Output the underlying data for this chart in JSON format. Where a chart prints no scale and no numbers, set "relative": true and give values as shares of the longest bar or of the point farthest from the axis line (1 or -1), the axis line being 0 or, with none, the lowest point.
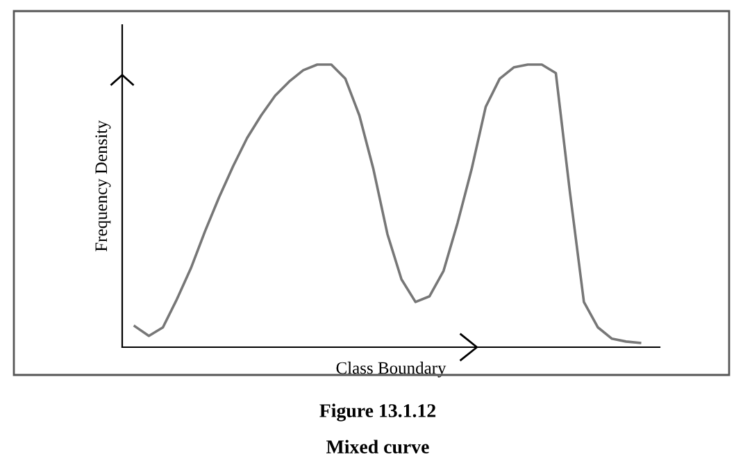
{
  "chart_data": {
    "type": "line",
    "relative": true,
    "xlabel": "Class Boundary",
    "ylabel": "Frequency Density",
    "annotations": [
      "Figure 13.1.12",
      "Mixed curve"
    ],
    "categories": [
      null,
      null,
      null,
      null,
      null,
      null,
      null,
      null,
      null,
      null,
      null,
      null,
      null,
      null,
      null,
      null,
      null,
      null,
      null,
      null,
      null,
      null,
      null,
      null,
      null,
      null,
      null,
      null,
      null,
      null,
      null,
      null,
      null,
      null,
      null,
      null,
      null
    ],
    "series": [
      {
        "color": "#777777",
        "values": [
          0.074,
          0.04,
          0.07,
          0.17,
          0.28,
          0.41,
          0.53,
          0.64,
          0.74,
          0.82,
          0.89,
          0.94,
          0.98,
          1.0,
          1.0,
          0.95,
          0.82,
          0.63,
          0.4,
          0.24,
          0.16,
          0.18,
          0.27,
          0.44,
          0.63,
          0.85,
          0.95,
          0.99,
          1.0,
          1.0,
          0.97,
          0.55,
          0.16,
          0.07,
          0.03,
          0.02,
          0.015
        ]
      }
    ],
    "grid": false,
    "legend": false,
    "marker": "none",
    "line_style": "solid"
  }
}
